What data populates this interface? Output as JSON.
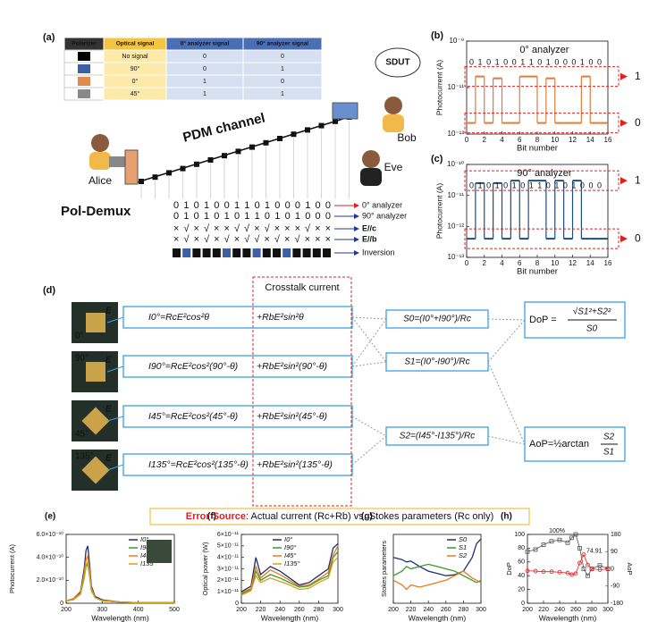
{
  "panel_a": {
    "label": "(a)",
    "table": {
      "header": [
        "Polarizer",
        "Optical signal",
        "0° analyzer signal",
        "90° analyzer signal"
      ],
      "rows": [
        [
          "No signal",
          "0",
          "0"
        ],
        [
          "90°",
          "0",
          "1"
        ],
        [
          "0°",
          "1",
          "0"
        ],
        [
          "45°",
          "1",
          "1"
        ]
      ]
    },
    "channel": "PDM channel",
    "alice": "Alice",
    "bob": "Bob",
    "eve": "Eve",
    "sdut": "SDUT",
    "demux": "Pol-Demux",
    "rows": [
      {
        "name": "0° analyzer",
        "text": "0 1 0 1 0 0 1 1 0 1 0 0 0 1 0 0",
        "color": "#e07b39"
      },
      {
        "name": "90° analyzer",
        "text": "0 1 0 1 0 1 0 1 1 0 1 0 1 0 0 0",
        "color": "#1f3a93"
      },
      {
        "name": "E//c",
        "text": "× √ × √ × × √ √ × √ × × × √ × ×",
        "color": "#e05a1e"
      },
      {
        "name": "E//b",
        "text": "× √ × √ × √ × √ √ × √ × √ × × ×",
        "color": "#1f3a93"
      },
      {
        "name": "Inversion",
        "text": "",
        "color": "#1f3a93"
      }
    ]
  },
  "panel_b": {
    "label": "(b)",
    "type": "step",
    "legend": "0° analyzer",
    "color": "#e07b39",
    "xlabel": "Bit number",
    "ylabel": "Photocurrent (A)",
    "log": true,
    "xlim": [
      0,
      16
    ],
    "ylim": [
      1e-13,
      1e-09
    ],
    "xticks": [
      0,
      2,
      4,
      6,
      8,
      10,
      12,
      14,
      16
    ],
    "yticks": [
      {
        "value": 1e-13,
        "label": "10⁻¹³"
      },
      {
        "value": 1e-11,
        "label": "10⁻¹¹"
      },
      {
        "value": 1e-09,
        "label": "10⁻⁹"
      }
    ],
    "bits": "0 1 0 1 0 0 1 1 0 1 0 0 0 1 0 0",
    "x": [
      0,
      1,
      2,
      3,
      4,
      5,
      6,
      7,
      8,
      9,
      10,
      11,
      12,
      13,
      14,
      15
    ],
    "values": [
      3e-13,
      3e-11,
      3e-13,
      2.5e-11,
      3e-13,
      3e-13,
      3e-11,
      3e-11,
      3e-13,
      2.5e-11,
      3e-13,
      3e-13,
      3e-13,
      3e-11,
      3e-13,
      3e-13
    ],
    "levels": [
      "1",
      "0"
    ]
  },
  "panel_c": {
    "label": "(c)",
    "type": "step",
    "legend": "90° analyzer",
    "color": "#1f4e79",
    "xlabel": "Bit number",
    "ylabel": "Photocurrent (A)",
    "log": true,
    "xlim": [
      0,
      16
    ],
    "ylim": [
      1e-13,
      1e-10
    ],
    "xticks": [
      0,
      2,
      4,
      6,
      8,
      10,
      12,
      14,
      16
    ],
    "yticks": [
      {
        "value": 1e-13,
        "label": "10⁻¹³"
      },
      {
        "value": 1e-12,
        "label": "10⁻¹²"
      },
      {
        "value": 1e-11,
        "label": "10⁻¹¹"
      },
      {
        "value": 1e-10,
        "label": "10⁻¹⁰"
      }
    ],
    "bits": "0 1 0 1 0 1 0 1 1 0 1 0 1 0 0 0",
    "x": [
      0,
      1,
      2,
      3,
      4,
      5,
      6,
      7,
      8,
      9,
      10,
      11,
      12,
      13,
      14,
      15
    ],
    "values": [
      4e-13,
      2.5e-11,
      4e-13,
      2.5e-11,
      4e-13,
      3e-11,
      4e-13,
      3e-11,
      3e-11,
      4e-13,
      3e-11,
      4e-13,
      3e-11,
      4e-13,
      4e-13,
      4e-13
    ],
    "levels": [
      "1",
      "0"
    ]
  },
  "panel_d": {
    "label": "(d)",
    "crosstalk": "Crosstalk current",
    "tiles": [
      "0°",
      "90°",
      "45°",
      "135°"
    ],
    "field": "E",
    "equations": [
      {
        "main": "I0°=RcE²cos²θ",
        "cross": "+RbE²sin²θ"
      },
      {
        "main": "I90°=RcE²cos²(90°-θ)",
        "cross": "+RbE²sin²(90°-θ)"
      },
      {
        "main": "I45°=RcE²cos²(45°-θ)",
        "cross": "+RbE²sin²(45°-θ)"
      },
      {
        "main": "I135°=RcE²cos²(135°-θ)",
        "cross": "+RbE²sin²(135°-θ)"
      }
    ],
    "stokes": [
      "S0=(I0°+I90°)/Rc",
      "S1=(I0°-I90°)/Rc",
      "S2=(I45°-I135°)/Rc"
    ],
    "dop": {
      "lhs": "DoP =",
      "num": "√S1²+S2²",
      "den": "S0"
    },
    "aop": {
      "lhs": "AoP=½arctan",
      "num": "S2",
      "den": "S1"
    },
    "error": {
      "source": "Error Source",
      "text": ": Actual current (Rc+Rb) vs. Stokes parameters (Rc only)"
    }
  },
  "panel_e": {
    "label": "(e)",
    "type": "line",
    "xlabel": "Wavelength (nm)",
    "ylabel": "Photocurrent (A)",
    "xlim": [
      200,
      500
    ],
    "ylim": [
      0,
      6e-10
    ],
    "xticks": [
      200,
      300,
      400,
      500
    ],
    "yticks": [
      0,
      {
        "value": 2e-10,
        "label": "2.0×10⁻¹⁰"
      },
      {
        "value": 4e-10,
        "label": "4.0×10⁻¹⁰"
      },
      {
        "value": 6e-10,
        "label": "6.0×10⁻¹⁰"
      }
    ],
    "x": [
      200,
      220,
      240,
      250,
      255,
      260,
      265,
      270,
      280,
      300,
      350,
      400,
      450,
      500
    ],
    "series": [
      {
        "name": "I0°",
        "color": "#1f2f6e",
        "values": [
          2e-11,
          4e-11,
          1e-10,
          3e-10,
          4.6e-10,
          5e-10,
          3.4e-10,
          1.5e-10,
          6e-11,
          3e-11,
          1e-11,
          5e-12,
          5e-12,
          5e-12
        ]
      },
      {
        "name": "I90°",
        "color": "#3a9a2a",
        "values": [
          2e-11,
          3e-11,
          8e-11,
          2.2e-10,
          3.2e-10,
          3.4e-10,
          2.4e-10,
          1.1e-10,
          5e-11,
          2e-11,
          1e-11,
          5e-12,
          5e-12,
          5e-12
        ]
      },
      {
        "name": "I45°",
        "color": "#e87a1e",
        "values": [
          2e-11,
          4e-11,
          9e-11,
          2.6e-10,
          3.8e-10,
          4.1e-10,
          2.9e-10,
          1.3e-10,
          5e-11,
          2.5e-11,
          1e-11,
          5e-12,
          5e-12,
          5e-12
        ]
      },
      {
        "name": "I135°",
        "color": "#d4a017",
        "values": [
          2e-11,
          3e-11,
          8e-11,
          2.3e-10,
          3.3e-10,
          3.6e-10,
          2.5e-10,
          1.2e-10,
          5e-11,
          2e-11,
          1e-11,
          5e-12,
          5e-12,
          5e-12
        ]
      }
    ]
  },
  "panel_f": {
    "label": "(f)",
    "type": "line",
    "xlabel": "Wavelength (nm)",
    "ylabel": "Optical power (W)",
    "xlim": [
      200,
      300
    ],
    "ylim": [
      0,
      6e-11
    ],
    "xticks": [
      200,
      220,
      240,
      260,
      280,
      300
    ],
    "yticks": [
      0,
      {
        "value": 1e-11,
        "label": "1×10⁻¹¹"
      },
      {
        "value": 2e-11,
        "label": "2×10⁻¹¹"
      },
      {
        "value": 3e-11,
        "label": "3×10⁻¹¹"
      },
      {
        "value": 4e-11,
        "label": "4×10⁻¹¹"
      },
      {
        "value": 5e-11,
        "label": "5×10⁻¹¹"
      },
      {
        "value": 6e-11,
        "label": "6×10⁻¹¹"
      }
    ],
    "x": [
      200,
      210,
      215,
      220,
      230,
      240,
      250,
      260,
      270,
      280,
      290,
      295,
      300
    ],
    "series": [
      {
        "name": "I0°",
        "color": "#1f2f6e",
        "values": [
          1e-11,
          1.5e-11,
          4e-11,
          2.5e-11,
          3.2e-11,
          2.8e-11,
          2.2e-11,
          1.6e-11,
          1.8e-11,
          2.4e-11,
          3e-11,
          4.8e-11,
          5.2e-11
        ]
      },
      {
        "name": "I90°",
        "color": "#3a9a2a",
        "values": [
          8e-12,
          1.2e-11,
          2.8e-11,
          2e-11,
          2.5e-11,
          2.2e-11,
          1.8e-11,
          1.4e-11,
          1.5e-11,
          2e-11,
          2.4e-11,
          4e-11,
          4.5e-11
        ]
      },
      {
        "name": "I45°",
        "color": "#e87a1e",
        "values": [
          9e-12,
          1.3e-11,
          3.2e-11,
          2.2e-11,
          2.9e-11,
          2.5e-11,
          2e-11,
          1.5e-11,
          1.6e-11,
          2.1e-11,
          2.7e-11,
          4.2e-11,
          5e-11
        ]
      },
      {
        "name": "I135°",
        "color": "#d4a017",
        "values": [
          7e-12,
          1.1e-11,
          2.4e-11,
          1.8e-11,
          2.2e-11,
          1.9e-11,
          1.6e-11,
          1.2e-11,
          1.3e-11,
          1.8e-11,
          2.2e-11,
          3.6e-11,
          4e-11
        ]
      }
    ]
  },
  "panel_g": {
    "label": "(g)",
    "type": "line",
    "xlabel": "Wavelength (nm)",
    "ylabel": "Stokes parameters",
    "xlim": [
      200,
      300
    ],
    "ylim": [
      -0.5,
      1
    ],
    "xticks": [
      200,
      220,
      240,
      260,
      280,
      300
    ],
    "yticks": [],
    "x": [
      200,
      210,
      215,
      220,
      230,
      240,
      250,
      260,
      270,
      280,
      290,
      295,
      300
    ],
    "series": [
      {
        "name": "S0",
        "color": "#1f2f6e",
        "values": [
          0.5,
          0.45,
          0.4,
          0.42,
          0.3,
          0.2,
          0.15,
          0.1,
          0.12,
          0.2,
          0.5,
          0.8,
          0.9
        ]
      },
      {
        "name": "S1",
        "color": "#3a9a2a",
        "values": [
          0.1,
          0.2,
          0.3,
          0.25,
          0.3,
          0.35,
          0.3,
          0.25,
          0.2,
          0.1,
          0,
          -0.05,
          0
        ]
      },
      {
        "name": "S2",
        "color": "#e87a1e",
        "values": [
          0,
          -0.1,
          -0.2,
          -0.1,
          -0.15,
          -0.1,
          -0.05,
          0,
          0.1,
          0.2,
          0.05,
          0,
          -0.05
        ]
      }
    ]
  },
  "panel_h": {
    "label": "(h)",
    "type": "line",
    "xlabel": "Wavelength (nm)",
    "ylabel": "DoP",
    "y2label": "AoP",
    "xlim": [
      200,
      300
    ],
    "ylim": [
      0,
      100
    ],
    "xticks": [
      200,
      220,
      240,
      260,
      280,
      300
    ],
    "yticks": [
      0,
      20,
      40,
      60,
      80,
      100
    ],
    "y2lim": [
      -180,
      180
    ],
    "y2ticks": [
      -180,
      -90,
      0,
      90,
      180
    ],
    "x": [
      200,
      210,
      220,
      230,
      240,
      250,
      255,
      260,
      265,
      270,
      275,
      280,
      290,
      300
    ],
    "series": [
      {
        "name": "DoP",
        "color": "#555555",
        "markers": true,
        "values": [
          75,
          78,
          85,
          90,
          92,
          88,
          95,
          100,
          80,
          50,
          40,
          50,
          55,
          50
        ]
      },
      {
        "name": "AoP",
        "color": "#e02020",
        "axis": "y2",
        "markers": true,
        "values": [
          -10,
          -12,
          -15,
          -15,
          -18,
          -22,
          -30,
          -25,
          30,
          74.91,
          20,
          0,
          -5,
          0
        ]
      }
    ],
    "annotations": [
      "100%",
      "74.91"
    ]
  }
}
